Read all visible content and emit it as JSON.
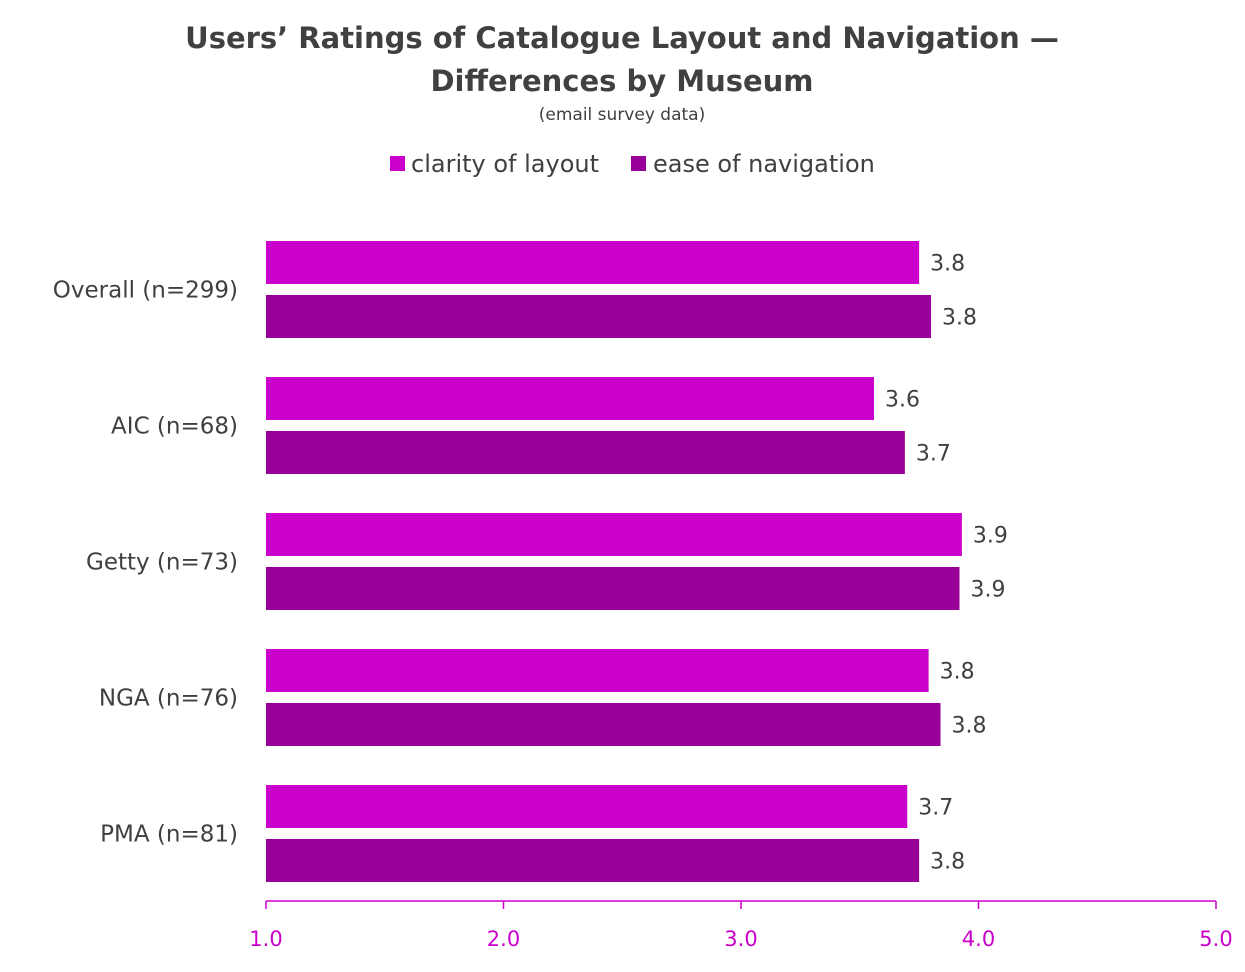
{
  "chart_data": {
    "type": "bar",
    "orientation": "horizontal",
    "title_line1": "Users’ Ratings of Catalogue Layout and Navigation —",
    "title_line2": "Differences by Museum",
    "subtitle": "(email survey data)",
    "categories": [
      "Overall (n=299)",
      "AIC (n=68)",
      "Getty (n=73)",
      "NGA (n=76)",
      "PMA (n=81)"
    ],
    "series": [
      {
        "name": "clarity of layout",
        "color": "#cc00cc",
        "values": [
          3.75,
          3.56,
          3.93,
          3.79,
          3.7
        ],
        "labels": [
          "3.8",
          "3.6",
          "3.9",
          "3.8",
          "3.7"
        ]
      },
      {
        "name": "ease of navigation",
        "color": "#990099",
        "values": [
          3.8,
          3.69,
          3.92,
          3.84,
          3.75
        ],
        "labels": [
          "3.8",
          "3.7",
          "3.9",
          "3.8",
          "3.8"
        ]
      }
    ],
    "xlim": [
      1.0,
      5.0
    ],
    "xticks": [
      "1.0",
      "2.0",
      "3.0",
      "4.0",
      "5.0"
    ],
    "axis_color": "#cc00cc",
    "legend_position": "top",
    "grid": false
  }
}
